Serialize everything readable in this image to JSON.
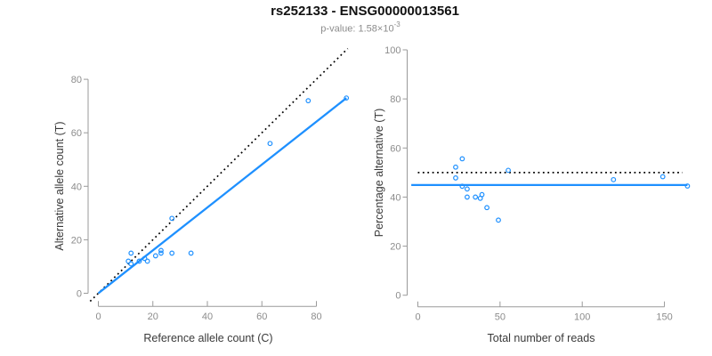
{
  "header": {
    "title": "rs252133 - ENSG00000013561",
    "subtitle_prefix": "p-value: 1.58×10",
    "subtitle_exponent": "-3"
  },
  "colors": {
    "accent_blue": "#1E90FF",
    "dotted_line_black": "#000000",
    "axis_gray": "#9a9a9a",
    "tick_label_gray": "#8c8c8c",
    "axis_title_gray": "#3a3a3a",
    "subtitle_gray": "#8c8c8c"
  },
  "chart_data": [
    {
      "type": "scatter",
      "name": "allele-counts",
      "xlabel": "Reference allele count (C)",
      "ylabel": "Alternative allele count (T)",
      "xticks": [
        0,
        20,
        40,
        60,
        80
      ],
      "yticks": [
        0,
        20,
        40,
        60,
        80
      ],
      "xlim": [
        -3,
        93.6
      ],
      "ylim": [
        -3,
        93.6
      ],
      "grid": false,
      "legend": null,
      "point_color": "#1E90FF",
      "points": [
        [
          11,
          12
        ],
        [
          12,
          11
        ],
        [
          12,
          15
        ],
        [
          15,
          12
        ],
        [
          17,
          13
        ],
        [
          18,
          12
        ],
        [
          21,
          14
        ],
        [
          23,
          15
        ],
        [
          23,
          16
        ],
        [
          27,
          15
        ],
        [
          27,
          28
        ],
        [
          34,
          15
        ],
        [
          63,
          56
        ],
        [
          77,
          72
        ],
        [
          91,
          73
        ]
      ],
      "lines": [
        {
          "name": "identity-line",
          "style": "dotted",
          "color": "#000000",
          "slope": 1,
          "intercept": 0,
          "x_range": [
            -3,
            91.5
          ]
        },
        {
          "name": "fit-line",
          "style": "solid",
          "color": "#1E90FF",
          "slope": 0.802,
          "intercept": 0,
          "x_range": [
            0,
            91
          ]
        }
      ]
    },
    {
      "type": "scatter",
      "name": "percentage-vs-reads",
      "xlabel": "Total number of reads",
      "ylabel": "Percentage alternative (T)",
      "xticks": [
        0,
        50,
        100,
        150
      ],
      "yticks": [
        0,
        20,
        40,
        60,
        80,
        100
      ],
      "xlim": [
        -6.6,
        170.6
      ],
      "ylim": [
        -4,
        104
      ],
      "grid": false,
      "legend": null,
      "point_color": "#1E90FF",
      "points": [
        [
          23,
          52.2
        ],
        [
          23,
          47.8
        ],
        [
          27,
          55.6
        ],
        [
          27,
          44.4
        ],
        [
          30,
          43.3
        ],
        [
          30,
          40.0
        ],
        [
          35,
          40.0
        ],
        [
          38,
          39.5
        ],
        [
          39,
          41.0
        ],
        [
          42,
          35.7
        ],
        [
          49,
          30.6
        ],
        [
          55,
          50.9
        ],
        [
          119,
          47.1
        ],
        [
          149,
          48.3
        ],
        [
          164,
          44.5
        ]
      ],
      "lines": [
        {
          "name": "expected-50pct-line",
          "style": "dotted",
          "color": "#000000",
          "slope": 0,
          "intercept": 50,
          "x_range": [
            0,
            161
          ]
        },
        {
          "name": "mean-percentage-line",
          "style": "solid",
          "color": "#1E90FF",
          "slope": 0,
          "intercept": 44.9,
          "x_range": [
            -4,
            164
          ]
        }
      ]
    }
  ]
}
